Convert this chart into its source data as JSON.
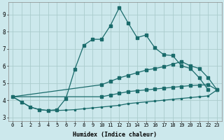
{
  "xlabel": "Humidex (Indice chaleur)",
  "bg_color": "#cce8ec",
  "grid_color": "#aacccc",
  "line_color": "#1a6b6b",
  "xlim": [
    -0.5,
    23.5
  ],
  "ylim": [
    2.8,
    9.7
  ],
  "yticks": [
    3,
    4,
    5,
    6,
    7,
    8,
    9
  ],
  "xticks": [
    0,
    1,
    2,
    3,
    4,
    5,
    6,
    7,
    8,
    9,
    10,
    11,
    12,
    13,
    14,
    15,
    16,
    17,
    18,
    19,
    20,
    21,
    22,
    23
  ],
  "line1_x": [
    0,
    1,
    2,
    3,
    4,
    5,
    6,
    7,
    8,
    9,
    10,
    11,
    12,
    13,
    14,
    15,
    16,
    17,
    18,
    19,
    20,
    21,
    22
  ],
  "line1_y": [
    4.2,
    3.9,
    3.6,
    3.45,
    3.4,
    3.45,
    4.1,
    5.8,
    7.2,
    7.55,
    7.55,
    8.35,
    9.4,
    8.5,
    7.65,
    7.8,
    7.05,
    6.65,
    6.6,
    6.0,
    5.85,
    5.3,
    4.6
  ],
  "line2_x": [
    0,
    10,
    11,
    12,
    13,
    14,
    15,
    16,
    17,
    18,
    19,
    20,
    21,
    22,
    23
  ],
  "line2_y": [
    4.2,
    4.9,
    5.1,
    5.3,
    5.45,
    5.6,
    5.75,
    5.85,
    5.95,
    6.1,
    6.25,
    6.0,
    5.85,
    5.3,
    4.6
  ],
  "line3_x": [
    0,
    10,
    11,
    12,
    13,
    14,
    15,
    16,
    17,
    18,
    19,
    20,
    21,
    22,
    23
  ],
  "line3_y": [
    4.2,
    4.2,
    4.3,
    4.4,
    4.5,
    4.55,
    4.6,
    4.65,
    4.7,
    4.75,
    4.8,
    4.85,
    4.88,
    4.9,
    4.6
  ],
  "line4_x": [
    0,
    1,
    2,
    3,
    4,
    5,
    6,
    7,
    8,
    9,
    10,
    11,
    12,
    13,
    14,
    15,
    16,
    17,
    18,
    19,
    20,
    21,
    22,
    23
  ],
  "line4_y": [
    4.2,
    3.9,
    3.6,
    3.45,
    3.4,
    3.4,
    3.42,
    3.45,
    3.5,
    3.55,
    3.6,
    3.65,
    3.7,
    3.8,
    3.85,
    3.9,
    3.95,
    4.0,
    4.05,
    4.1,
    4.15,
    4.2,
    4.25,
    4.6
  ]
}
